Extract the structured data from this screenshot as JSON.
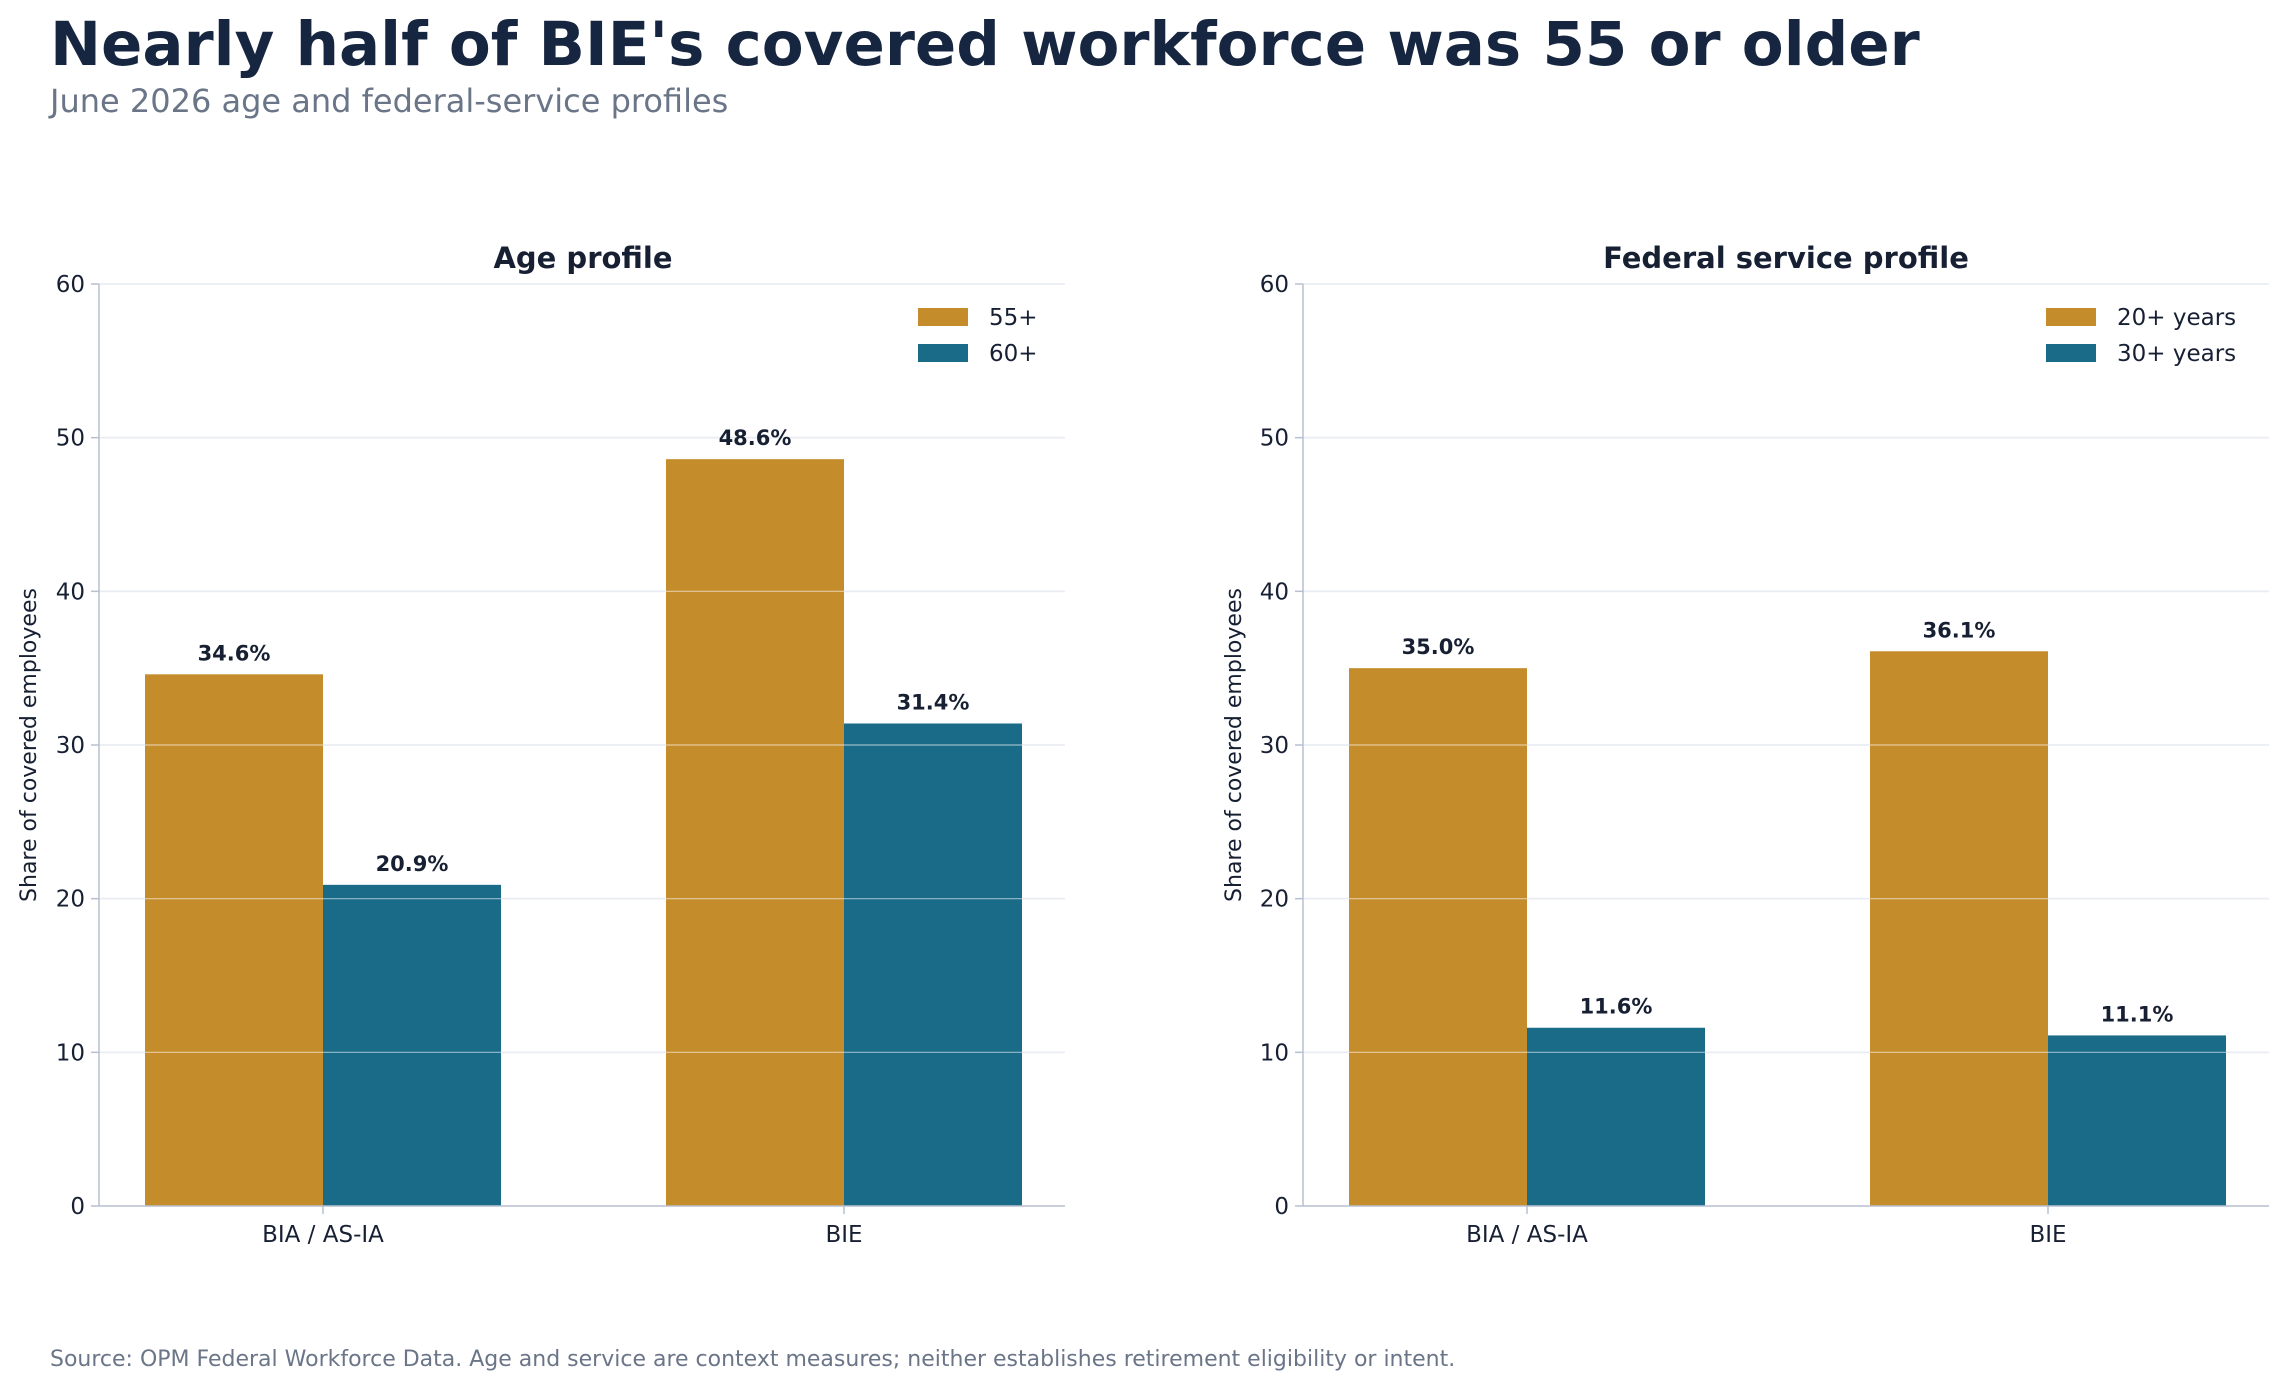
{
  "title": "Nearly half of BIE's covered workforce was 55 or older",
  "subtitle": "June 2026 age and federal-service profiles",
  "source": "Source: OPM Federal Workforce Data. Age and service are context measures; neither establishes retirement eligibility or intent.",
  "colors": {
    "series_1": "#c48c2b",
    "series_2": "#1a6b88",
    "grid": "#d5dbe5",
    "axis": "#b7c0cf",
    "text": "#172033"
  },
  "chart_data": [
    {
      "type": "bar",
      "title": "Age profile",
      "ylabel": "Share of covered employees",
      "xlabel": "",
      "ylim": [
        0,
        60
      ],
      "yticks": [
        0,
        10,
        20,
        30,
        40,
        50,
        60
      ],
      "grid": true,
      "legend_position": "top-right",
      "categories": [
        "BIA / AS-IA",
        "BIE"
      ],
      "series": [
        {
          "name": "55+",
          "values": [
            34.6,
            48.6
          ],
          "labels": [
            "34.6%",
            "48.6%"
          ]
        },
        {
          "name": "60+",
          "values": [
            20.9,
            31.4
          ],
          "labels": [
            "20.9%",
            "31.4%"
          ]
        }
      ]
    },
    {
      "type": "bar",
      "title": "Federal service profile",
      "ylabel": "Share of covered employees",
      "xlabel": "",
      "ylim": [
        0,
        60
      ],
      "yticks": [
        0,
        10,
        20,
        30,
        40,
        50,
        60
      ],
      "grid": true,
      "legend_position": "top-right",
      "categories": [
        "BIA / AS-IA",
        "BIE"
      ],
      "series": [
        {
          "name": "20+ years",
          "values": [
            35.0,
            36.1
          ],
          "labels": [
            "35.0%",
            "36.1%"
          ]
        },
        {
          "name": "30+ years",
          "values": [
            11.6,
            11.1
          ],
          "labels": [
            "11.6%",
            "11.1%"
          ]
        }
      ]
    }
  ]
}
